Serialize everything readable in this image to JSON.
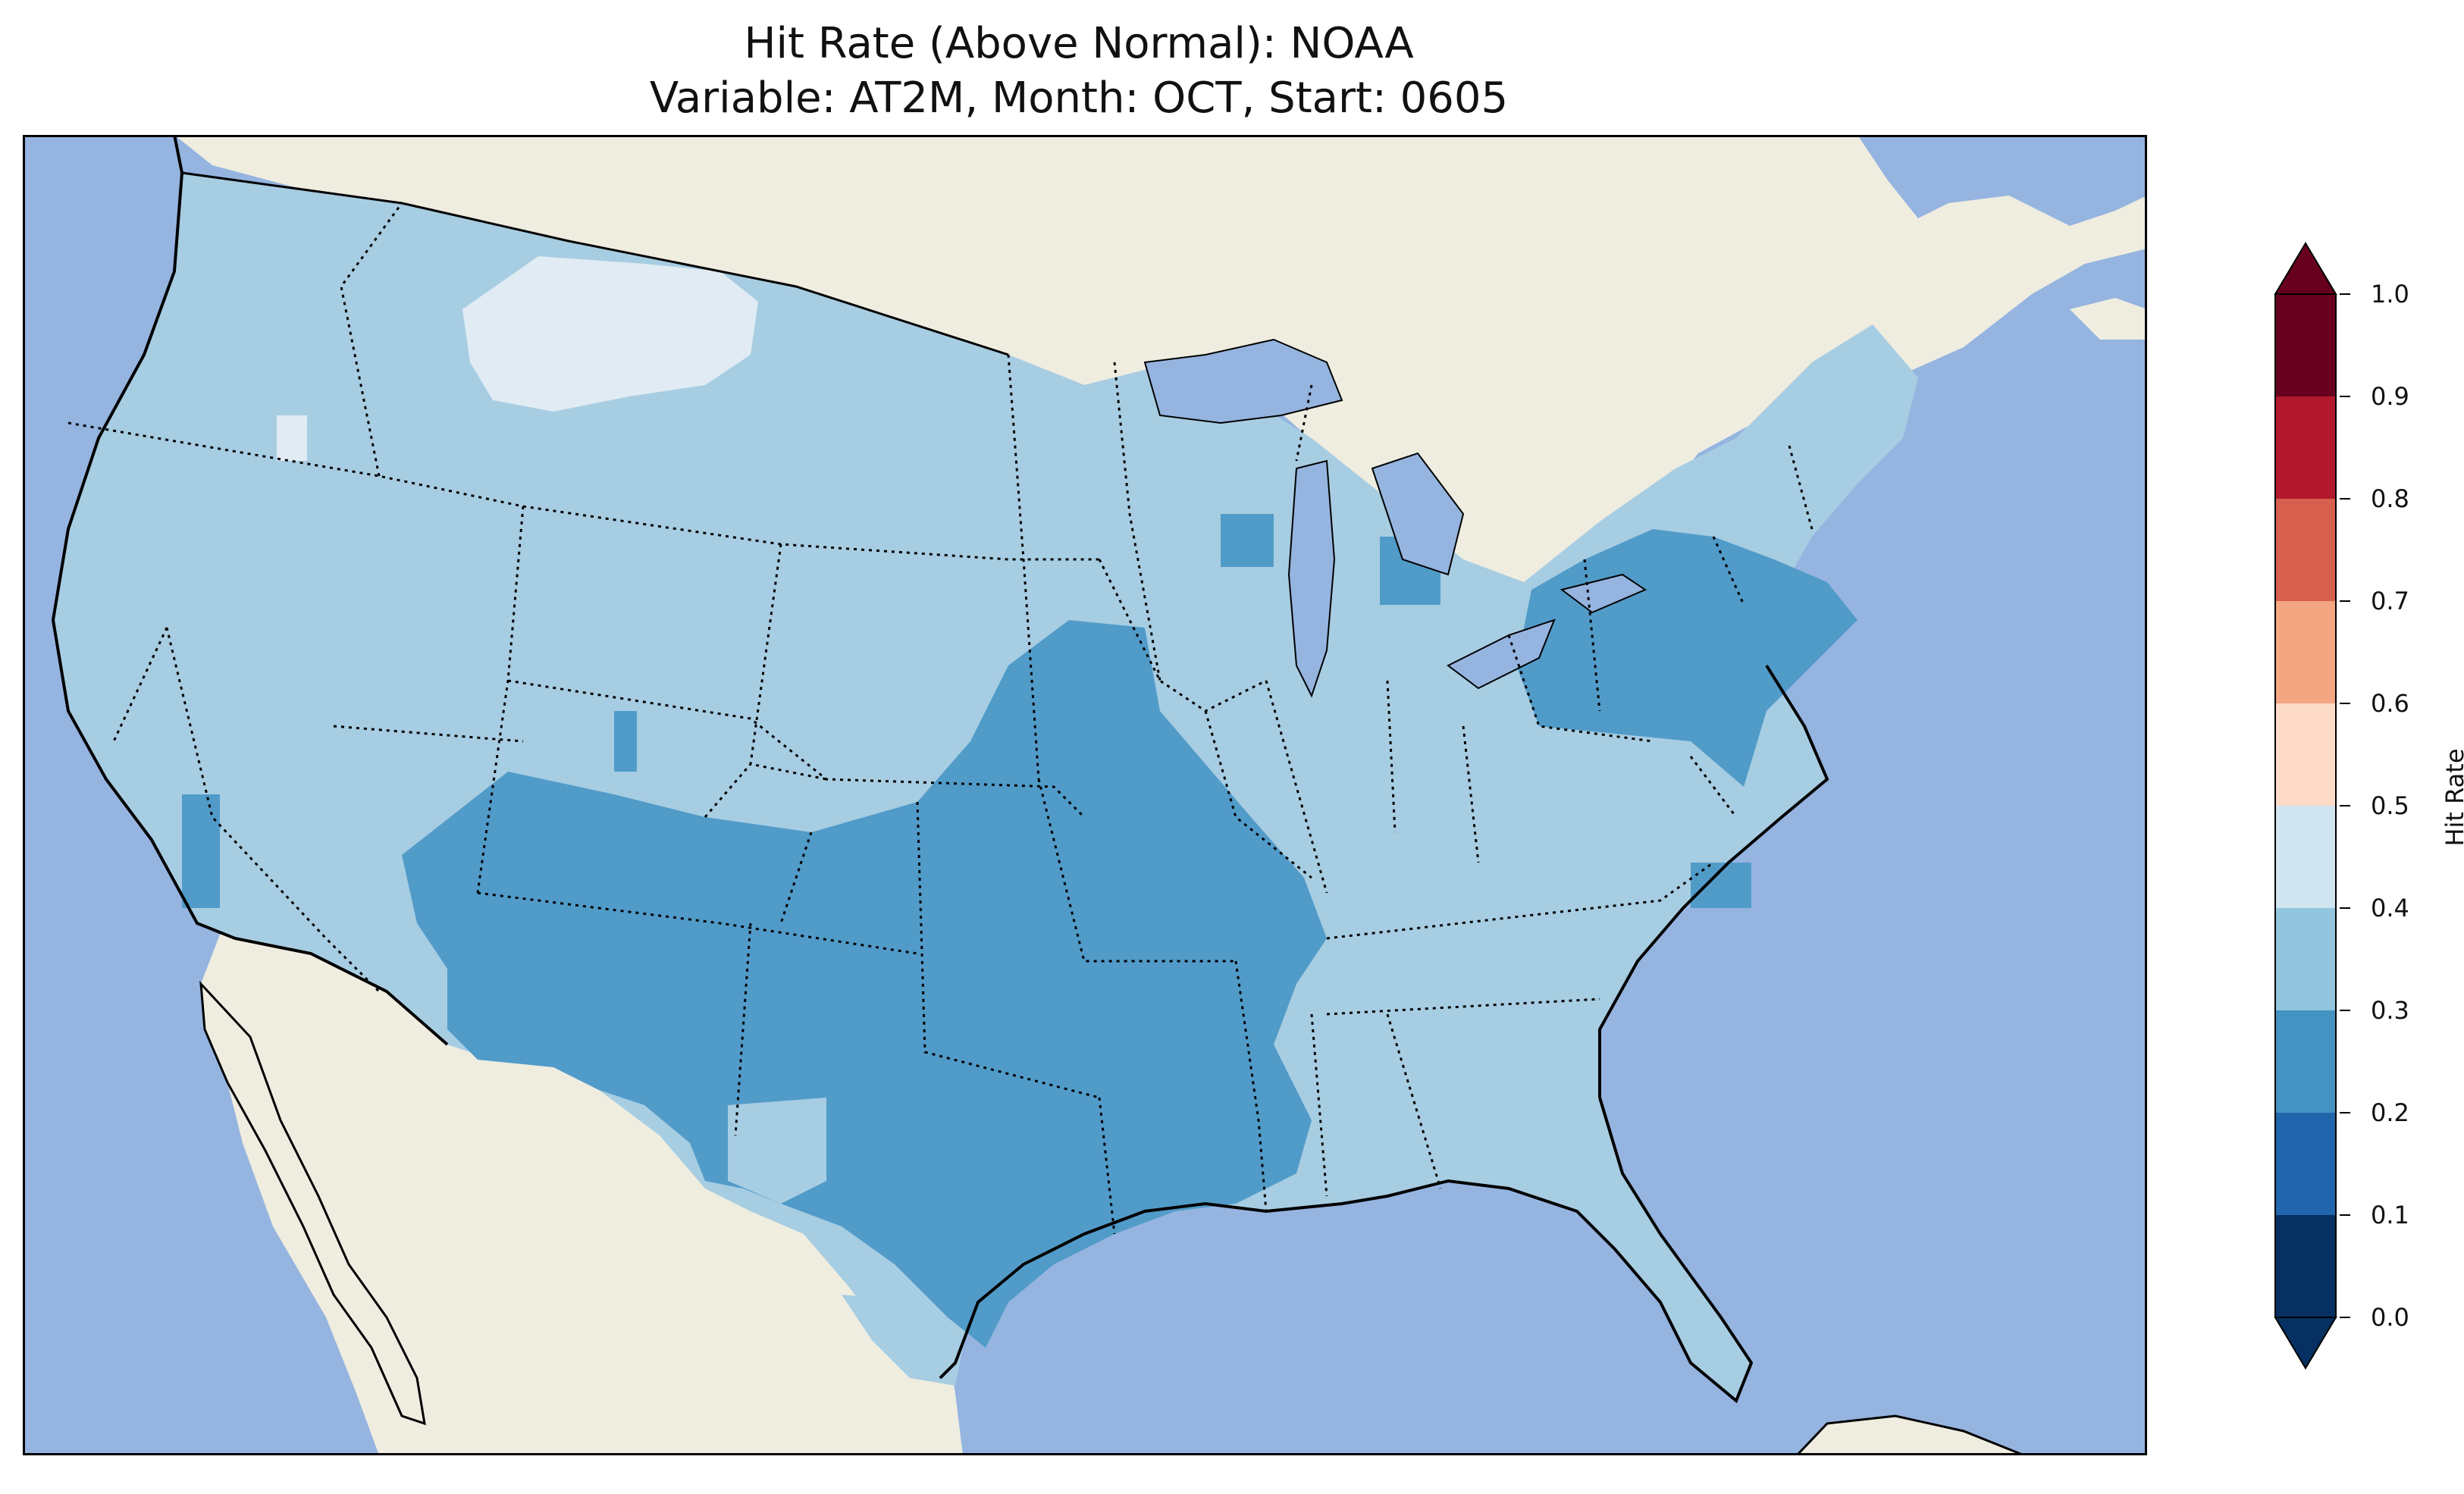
{
  "title": {
    "line1": "Hit Rate (Above Normal): NOAA",
    "line2": "Variable: AT2M, Month: OCT, Start: 0605"
  },
  "map": {
    "colors": {
      "ocean": "#95b4e0",
      "land": "#efede0",
      "coast": "#000000"
    }
  },
  "colorbar": {
    "label": "Hit Rate",
    "ticks": [
      "0.0",
      "0.1",
      "0.2",
      "0.3",
      "0.4",
      "0.5",
      "0.6",
      "0.7",
      "0.8",
      "0.9",
      "1.0"
    ],
    "bins": [
      {
        "range": [
          0.0,
          0.1
        ],
        "color": "#053061"
      },
      {
        "range": [
          0.1,
          0.2
        ],
        "color": "#2166ac"
      },
      {
        "range": [
          0.2,
          0.3
        ],
        "color": "#4393c3"
      },
      {
        "range": [
          0.3,
          0.4
        ],
        "color": "#92c5de"
      },
      {
        "range": [
          0.4,
          0.5
        ],
        "color": "#d1e5f0"
      },
      {
        "range": [
          0.5,
          0.6
        ],
        "color": "#fddbc7"
      },
      {
        "range": [
          0.6,
          0.7
        ],
        "color": "#f4a582"
      },
      {
        "range": [
          0.7,
          0.8
        ],
        "color": "#d6604d"
      },
      {
        "range": [
          0.8,
          0.9
        ],
        "color": "#b2182b"
      },
      {
        "range": [
          0.9,
          1.0
        ],
        "color": "#67001f"
      }
    ]
  }
}
